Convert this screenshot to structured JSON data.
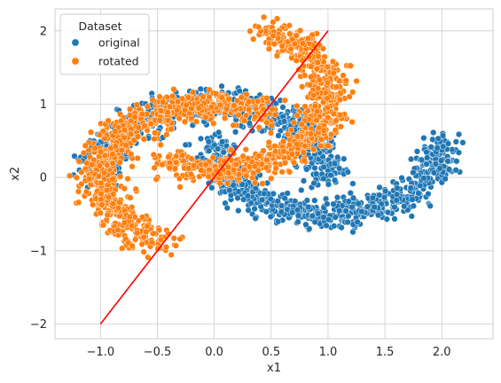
{
  "chart_data": {
    "type": "scatter",
    "title": "",
    "xlabel": "x1",
    "ylabel": "x2",
    "xlim": [
      -1.4,
      2.45
    ],
    "ylim": [
      -2.2,
      2.3
    ],
    "x_ticks": [
      -1.0,
      -0.5,
      0.0,
      0.5,
      1.0,
      1.5,
      2.0
    ],
    "x_tick_labels": [
      "−1.0",
      "−0.5",
      "0.0",
      "0.5",
      "1.0",
      "1.5",
      "2.0"
    ],
    "y_ticks": [
      -2,
      -1,
      0,
      1,
      2
    ],
    "y_tick_labels": [
      "−2",
      "−1",
      "0",
      "1",
      "2"
    ],
    "grid": true,
    "legend": {
      "title": "Dataset",
      "placement": "top-left",
      "entries": [
        "original",
        "rotated"
      ]
    },
    "series": [
      {
        "name": "original",
        "color": "#1f77b4",
        "shape": "two-moons",
        "moon1": {
          "center": [
            0.0,
            0.0
          ],
          "radius": 1.0,
          "angle_range_deg": [
            0,
            180
          ]
        },
        "moon2": {
          "center": [
            1.0,
            0.5
          ],
          "radius": 1.0,
          "angle_range_deg": [
            180,
            360
          ]
        },
        "noise": 0.1,
        "n_points": 1500
      },
      {
        "name": "rotated",
        "color": "#ff7f0e",
        "shape": "rotated two-moons",
        "rotation_deg": 63.4,
        "rotation_center": [
          0.0,
          0.0
        ],
        "n_points": 1500
      }
    ],
    "line": {
      "color": "#ff0000",
      "x": [
        -1.0,
        1.0
      ],
      "y": [
        -2.0,
        2.0
      ]
    }
  }
}
